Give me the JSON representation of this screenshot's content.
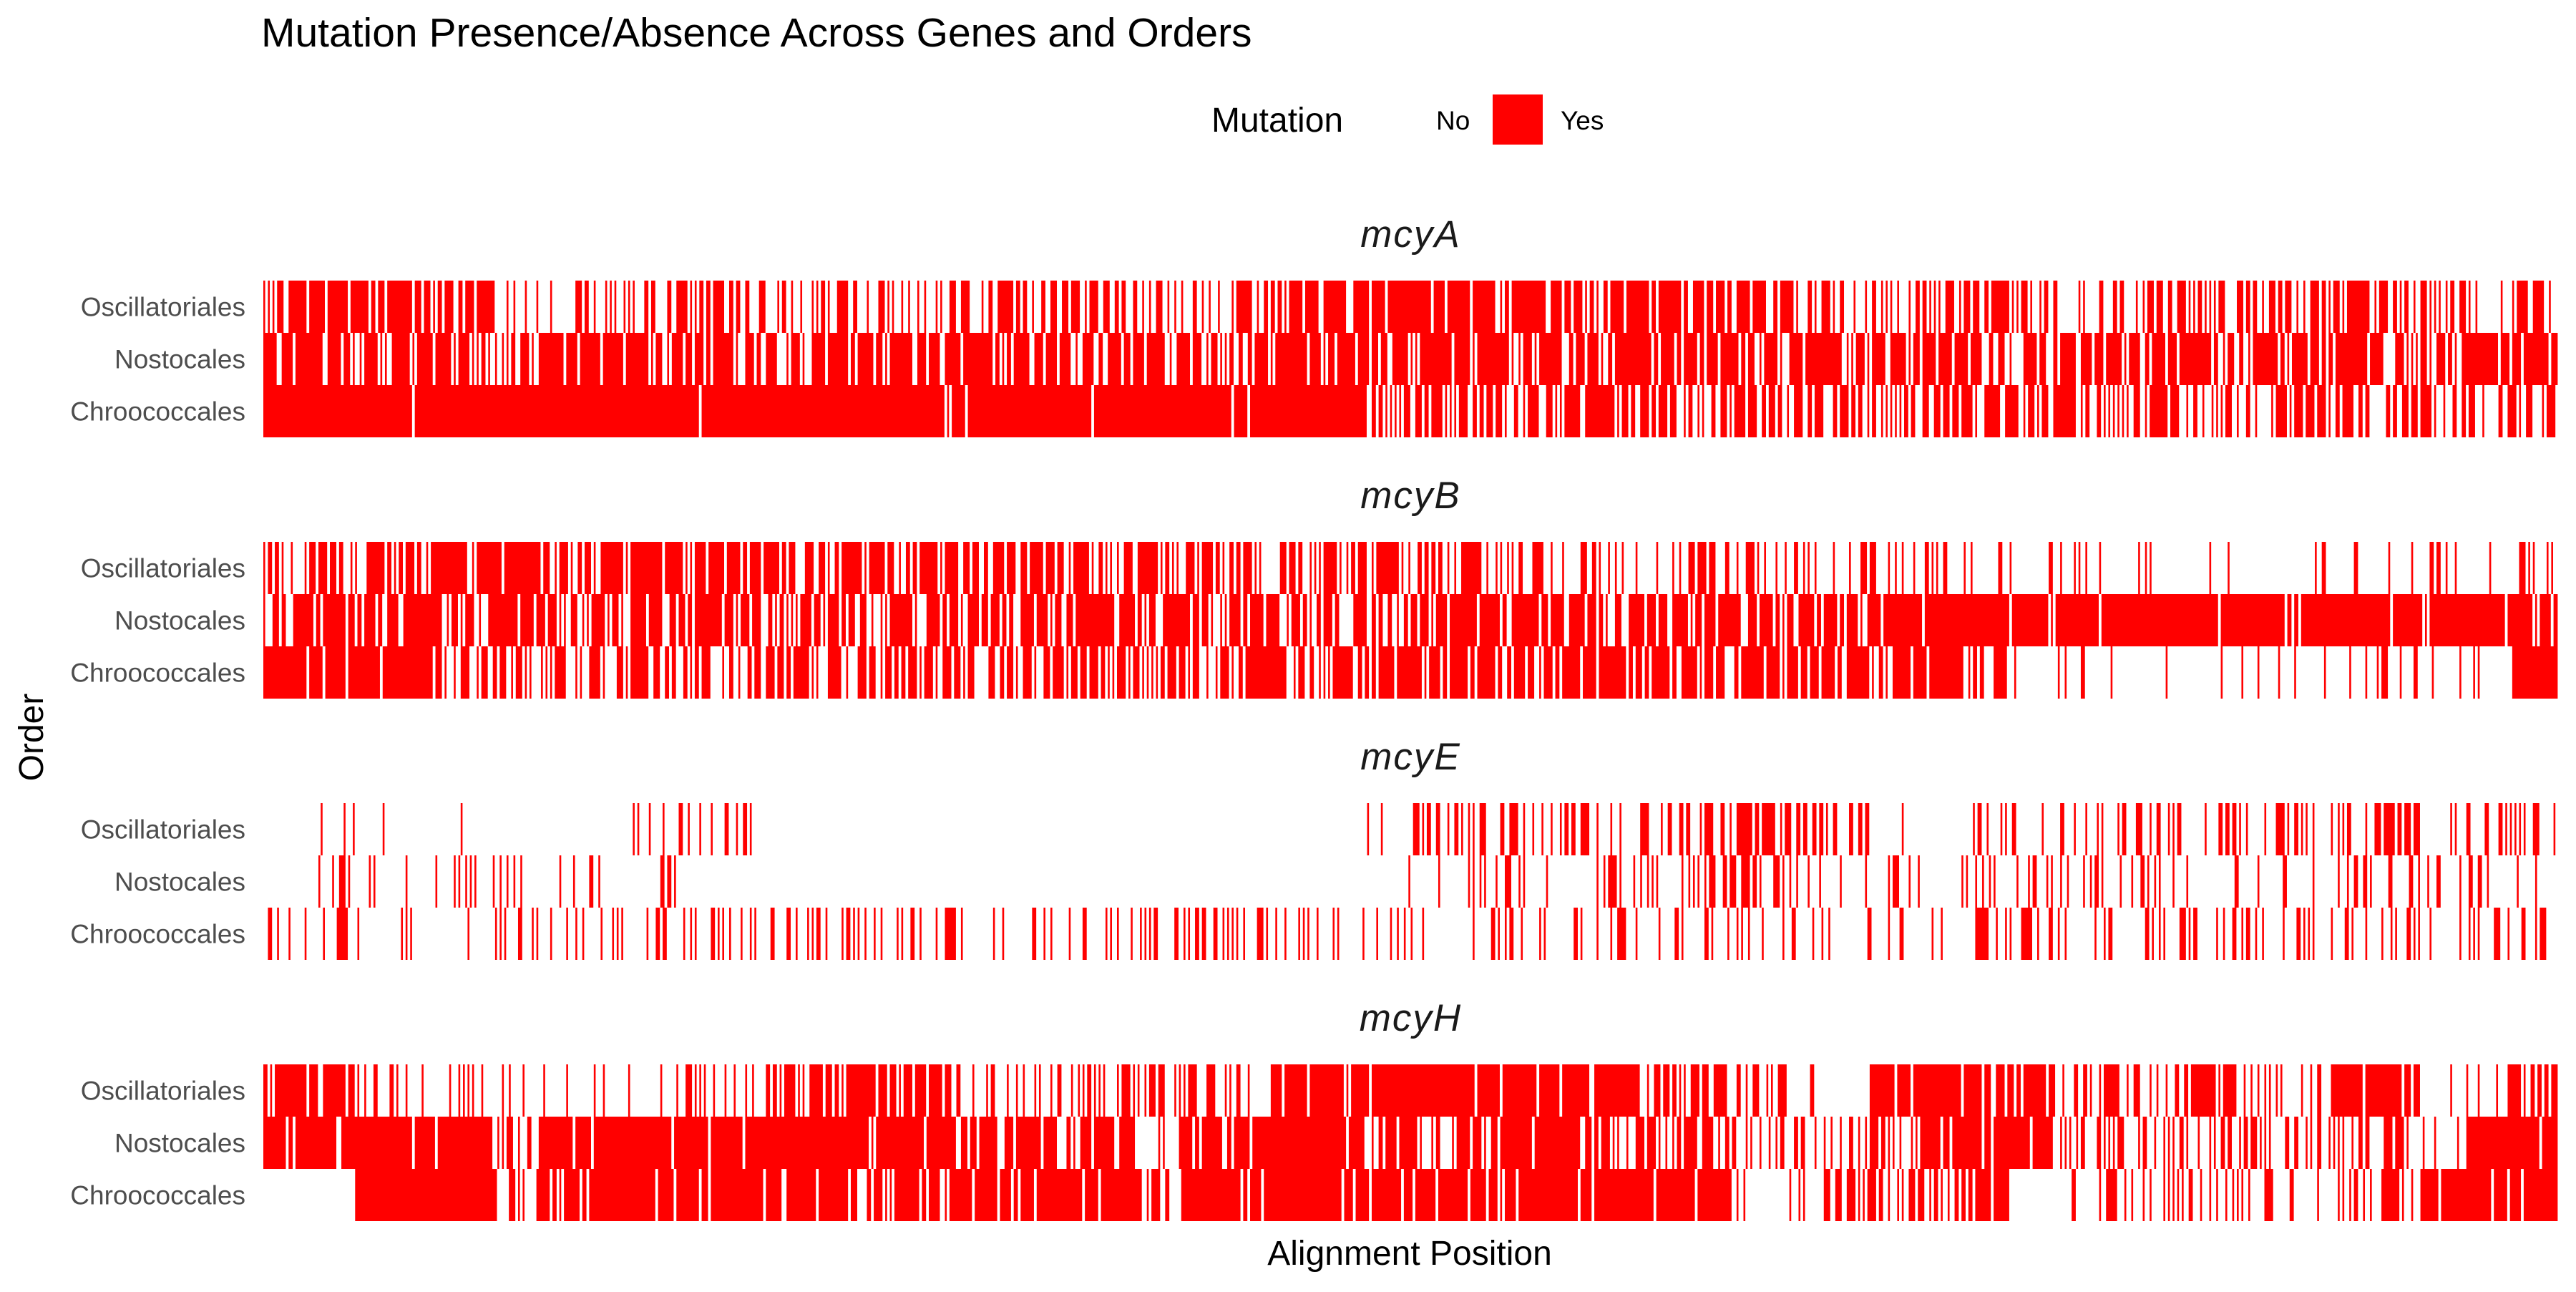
{
  "chart_data": {
    "type": "heatmap",
    "title": "Mutation Presence/Absence Across Genes and Orders",
    "xlabel": "Alignment Position",
    "ylabel": "Order",
    "legend": {
      "title": "Mutation",
      "entries": [
        {
          "label": "No",
          "color": "#FFFFFF"
        },
        {
          "label": "Yes",
          "color": "#FF0000"
        }
      ],
      "placement": "top"
    },
    "colors": {
      "mutation_yes": "#FF0000",
      "mutation_no": "#FFFFFF"
    },
    "orders": [
      "Oscillatoriales",
      "Nostocales",
      "Chroococcales"
    ],
    "x_range": [
      0,
      1000
    ],
    "grid": false,
    "facets": [
      {
        "gene": "mcyA",
        "rows": [
          {
            "order": "Oscillatoriales",
            "density": [
              0.8,
              0.85,
              0.75,
              0.8,
              0.75,
              0.3,
              0.15,
              0.4,
              0.35,
              0.55,
              0.5,
              0.4,
              0.55,
              0.4,
              0.35,
              0.45,
              0.5,
              0.55,
              0.5,
              0.35,
              0.3,
              0.45,
              0.85,
              0.9,
              0.85,
              0.85,
              0.9,
              0.85,
              0.8,
              0.75,
              0.85,
              0.8,
              0.6,
              0.55,
              0.5,
              0.45,
              0.55,
              0.65,
              0.6,
              0.5,
              0.55,
              0.45,
              0.5,
              0.55,
              0.45,
              0.5,
              0.4,
              0.45,
              0.4,
              0.5
            ]
          },
          {
            "order": "Nostocales",
            "density": [
              0.9,
              0.85,
              0.8,
              0.75,
              0.8,
              0.75,
              0.7,
              0.8,
              0.75,
              0.8,
              0.75,
              0.7,
              0.75,
              0.7,
              0.75,
              0.8,
              0.75,
              0.7,
              0.75,
              0.8,
              0.75,
              0.7,
              0.8,
              0.85,
              0.8,
              0.85,
              0.8,
              0.75,
              0.8,
              0.75,
              0.7,
              0.75,
              0.7,
              0.75,
              0.7,
              0.75,
              0.7,
              0.75,
              0.7,
              0.75,
              0.7,
              0.75,
              0.7,
              0.75,
              0.7,
              0.75,
              0.7,
              0.75,
              0.8,
              0.85
            ]
          },
          {
            "order": "Chroococcales",
            "density": [
              0.97,
              0.97,
              0.97,
              0.97,
              0.96,
              0.97,
              0.97,
              0.96,
              0.97,
              0.97,
              0.97,
              0.97,
              0.97,
              0.97,
              0.97,
              0.96,
              0.97,
              0.97,
              0.97,
              0.97,
              0.97,
              0.97,
              0.97,
              0.97,
              0.55,
              0.55,
              0.6,
              0.55,
              0.6,
              0.55,
              0.6,
              0.55,
              0.6,
              0.55,
              0.6,
              0.55,
              0.6,
              0.55,
              0.6,
              0.6,
              0.55,
              0.6,
              0.55,
              0.6,
              0.55,
              0.6,
              0.55,
              0.6,
              0.55,
              0.6
            ]
          }
        ]
      },
      {
        "gene": "mcyB",
        "rows": [
          {
            "order": "Oscillatoriales",
            "density": [
              0.55,
              0.5,
              0.6,
              0.85,
              0.85,
              0.85,
              0.8,
              0.8,
              0.75,
              0.75,
              0.7,
              0.75,
              0.7,
              0.75,
              0.7,
              0.7,
              0.65,
              0.7,
              0.6,
              0.65,
              0.6,
              0.55,
              0.5,
              0.55,
              0.5,
              0.55,
              0.5,
              0.45,
              0.4,
              0.45,
              0.4,
              0.45,
              0.4,
              0.35,
              0.3,
              0.35,
              0.3,
              0.25,
              0.15,
              0.1,
              0.05,
              0.1,
              0.05,
              0.05,
              0.1,
              0.05,
              0.15,
              0.2,
              0.15,
              0.3
            ]
          },
          {
            "order": "Nostocales",
            "density": [
              0.8,
              0.75,
              0.8,
              0.75,
              0.7,
              0.75,
              0.7,
              0.75,
              0.7,
              0.75,
              0.7,
              0.75,
              0.7,
              0.75,
              0.7,
              0.75,
              0.7,
              0.75,
              0.7,
              0.75,
              0.7,
              0.75,
              0.7,
              0.75,
              0.7,
              0.75,
              0.7,
              0.75,
              0.7,
              0.75,
              0.7,
              0.75,
              0.7,
              0.75,
              0.72,
              0.95,
              0.92,
              0.95,
              0.9,
              0.92,
              0.95,
              0.9,
              0.92,
              0.95,
              0.9,
              0.92,
              0.95,
              0.9,
              0.92,
              0.95
            ]
          },
          {
            "order": "Chroococcales",
            "density": [
              0.9,
              0.85,
              0.9,
              0.85,
              0.6,
              0.55,
              0.5,
              0.55,
              0.6,
              0.55,
              0.6,
              0.65,
              0.6,
              0.55,
              0.6,
              0.65,
              0.6,
              0.7,
              0.65,
              0.7,
              0.65,
              0.7,
              0.65,
              0.7,
              0.75,
              0.7,
              0.75,
              0.7,
              0.75,
              0.7,
              0.8,
              0.75,
              0.8,
              0.75,
              0.8,
              0.75,
              0.8,
              0.75,
              0.15,
              0.1,
              0.15,
              0.1,
              0.15,
              0.1,
              0.15,
              0.1,
              0.15,
              0.1,
              0.15,
              0.95
            ]
          }
        ]
      },
      {
        "gene": "mcyE",
        "rows": [
          {
            "order": "Oscillatoriales",
            "density": [
              0.05,
              0.1,
              0.05,
              0.0,
              0.05,
              0.0,
              0.0,
              0.0,
              0.1,
              0.25,
              0.2,
              0.0,
              0.0,
              0.0,
              0.0,
              0.0,
              0.0,
              0.0,
              0.0,
              0.0,
              0.0,
              0.0,
              0.0,
              0.0,
              0.3,
              0.35,
              0.4,
              0.45,
              0.35,
              0.4,
              0.45,
              0.55,
              0.6,
              0.55,
              0.35,
              0.05,
              0.0,
              0.25,
              0.2,
              0.35,
              0.4,
              0.3,
              0.35,
              0.45,
              0.3,
              0.4,
              0.35,
              0.3,
              0.35,
              0.3
            ]
          },
          {
            "order": "Nostocales",
            "density": [
              0.0,
              0.15,
              0.1,
              0.1,
              0.15,
              0.15,
              0.2,
              0.2,
              0.1,
              0.05,
              0.0,
              0.0,
              0.0,
              0.0,
              0.0,
              0.0,
              0.0,
              0.0,
              0.0,
              0.0,
              0.0,
              0.0,
              0.0,
              0.0,
              0.2,
              0.2,
              0.3,
              0.3,
              0.25,
              0.2,
              0.25,
              0.35,
              0.45,
              0.4,
              0.2,
              0.15,
              0.2,
              0.3,
              0.25,
              0.1,
              0.3,
              0.35,
              0.2,
              0.25,
              0.2,
              0.3,
              0.25,
              0.3,
              0.25,
              0.2
            ]
          },
          {
            "order": "Chroococcales",
            "density": [
              0.25,
              0.2,
              0.15,
              0.2,
              0.1,
              0.25,
              0.2,
              0.15,
              0.2,
              0.3,
              0.35,
              0.4,
              0.35,
              0.3,
              0.35,
              0.3,
              0.2,
              0.15,
              0.25,
              0.3,
              0.35,
              0.3,
              0.35,
              0.25,
              0.2,
              0.25,
              0.2,
              0.25,
              0.2,
              0.25,
              0.3,
              0.25,
              0.3,
              0.35,
              0.25,
              0.3,
              0.4,
              0.35,
              0.3,
              0.25,
              0.3,
              0.35,
              0.25,
              0.2,
              0.3,
              0.25,
              0.3,
              0.25,
              0.35,
              0.25
            ]
          }
        ]
      },
      {
        "gene": "mcyH",
        "rows": [
          {
            "order": "Oscillatoriales",
            "density": [
              0.85,
              0.8,
              0.2,
              0.1,
              0.15,
              0.1,
              0.15,
              0.3,
              0.2,
              0.3,
              0.4,
              0.7,
              0.75,
              0.8,
              0.85,
              0.3,
              0.25,
              0.3,
              0.45,
              0.5,
              0.2,
              0.3,
              0.9,
              0.95,
              0.9,
              0.95,
              0.9,
              0.95,
              0.9,
              0.95,
              0.65,
              0.7,
              0.4,
              0.3,
              0.15,
              0.85,
              0.9,
              0.85,
              0.9,
              0.4,
              0.5,
              0.45,
              0.85,
              0.3,
              0.15,
              0.85,
              0.9,
              0.1,
              0.3,
              0.6
            ]
          },
          {
            "order": "Nostocales",
            "density": [
              0.85,
              0.95,
              0.95,
              0.95,
              0.9,
              0.5,
              0.95,
              0.95,
              0.95,
              0.95,
              0.95,
              0.9,
              0.95,
              0.95,
              0.95,
              0.9,
              0.75,
              0.8,
              0.85,
              0.2,
              0.85,
              0.9,
              0.95,
              0.95,
              0.5,
              0.55,
              0.6,
              0.95,
              0.9,
              0.55,
              0.6,
              0.55,
              0.5,
              0.4,
              0.3,
              0.4,
              0.95,
              0.9,
              0.85,
              0.5,
              0.4,
              0.45,
              0.4,
              0.35,
              0.4,
              0.45,
              0.4,
              0.35,
              0.95,
              0.95
            ]
          },
          {
            "order": "Chroococcales",
            "density": [
              0.05,
              0.0,
              0.95,
              0.95,
              0.9,
              0.5,
              0.6,
              0.95,
              0.95,
              0.95,
              0.9,
              0.95,
              0.9,
              0.6,
              0.65,
              0.95,
              0.9,
              0.95,
              0.85,
              0.6,
              0.95,
              0.9,
              0.95,
              0.95,
              0.9,
              0.95,
              0.9,
              0.95,
              0.85,
              0.95,
              0.9,
              0.95,
              0.05,
              0.3,
              0.5,
              0.55,
              0.6,
              0.95,
              0.1,
              0.05,
              0.4,
              0.45,
              0.4,
              0.3,
              0.35,
              0.45,
              0.4,
              0.95,
              0.9,
              0.95
            ]
          }
        ]
      }
    ]
  }
}
